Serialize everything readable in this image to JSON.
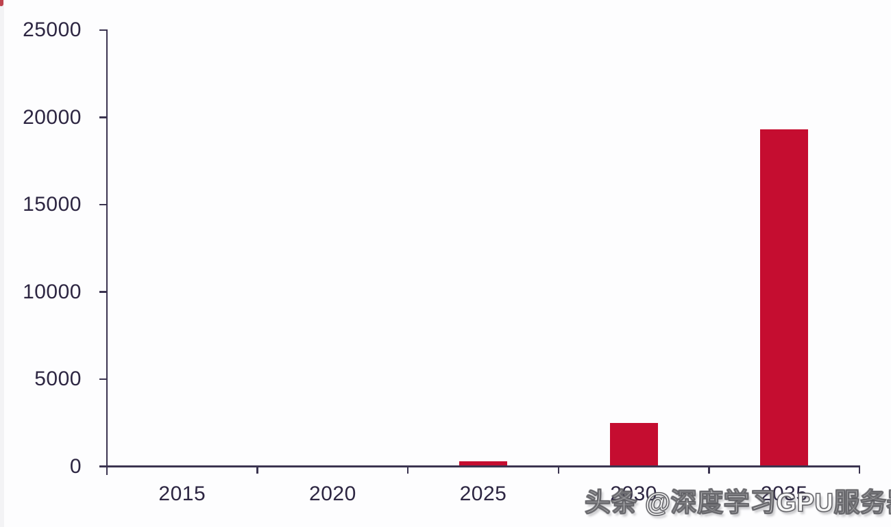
{
  "watermark": {
    "text": "头条 @深度学习GPU服务器"
  },
  "chart_data": {
    "type": "bar",
    "categories": [
      "2015",
      "2020",
      "2025",
      "2030",
      "2035"
    ],
    "values": [
      0,
      0,
      300,
      2500,
      19300
    ],
    "title": "",
    "xlabel": "",
    "ylabel": "",
    "ylim": [
      0,
      25000
    ],
    "y_ticks": [
      0,
      5000,
      10000,
      15000,
      20000,
      25000
    ],
    "y_tick_labels": [
      "0",
      "5000",
      "10000",
      "15000",
      "20000",
      "25000"
    ],
    "grid": false,
    "legend_position": "none",
    "bar_color": "#c50d30",
    "axis_color": "#3b3450",
    "tick_label_color": "#2d2642"
  }
}
